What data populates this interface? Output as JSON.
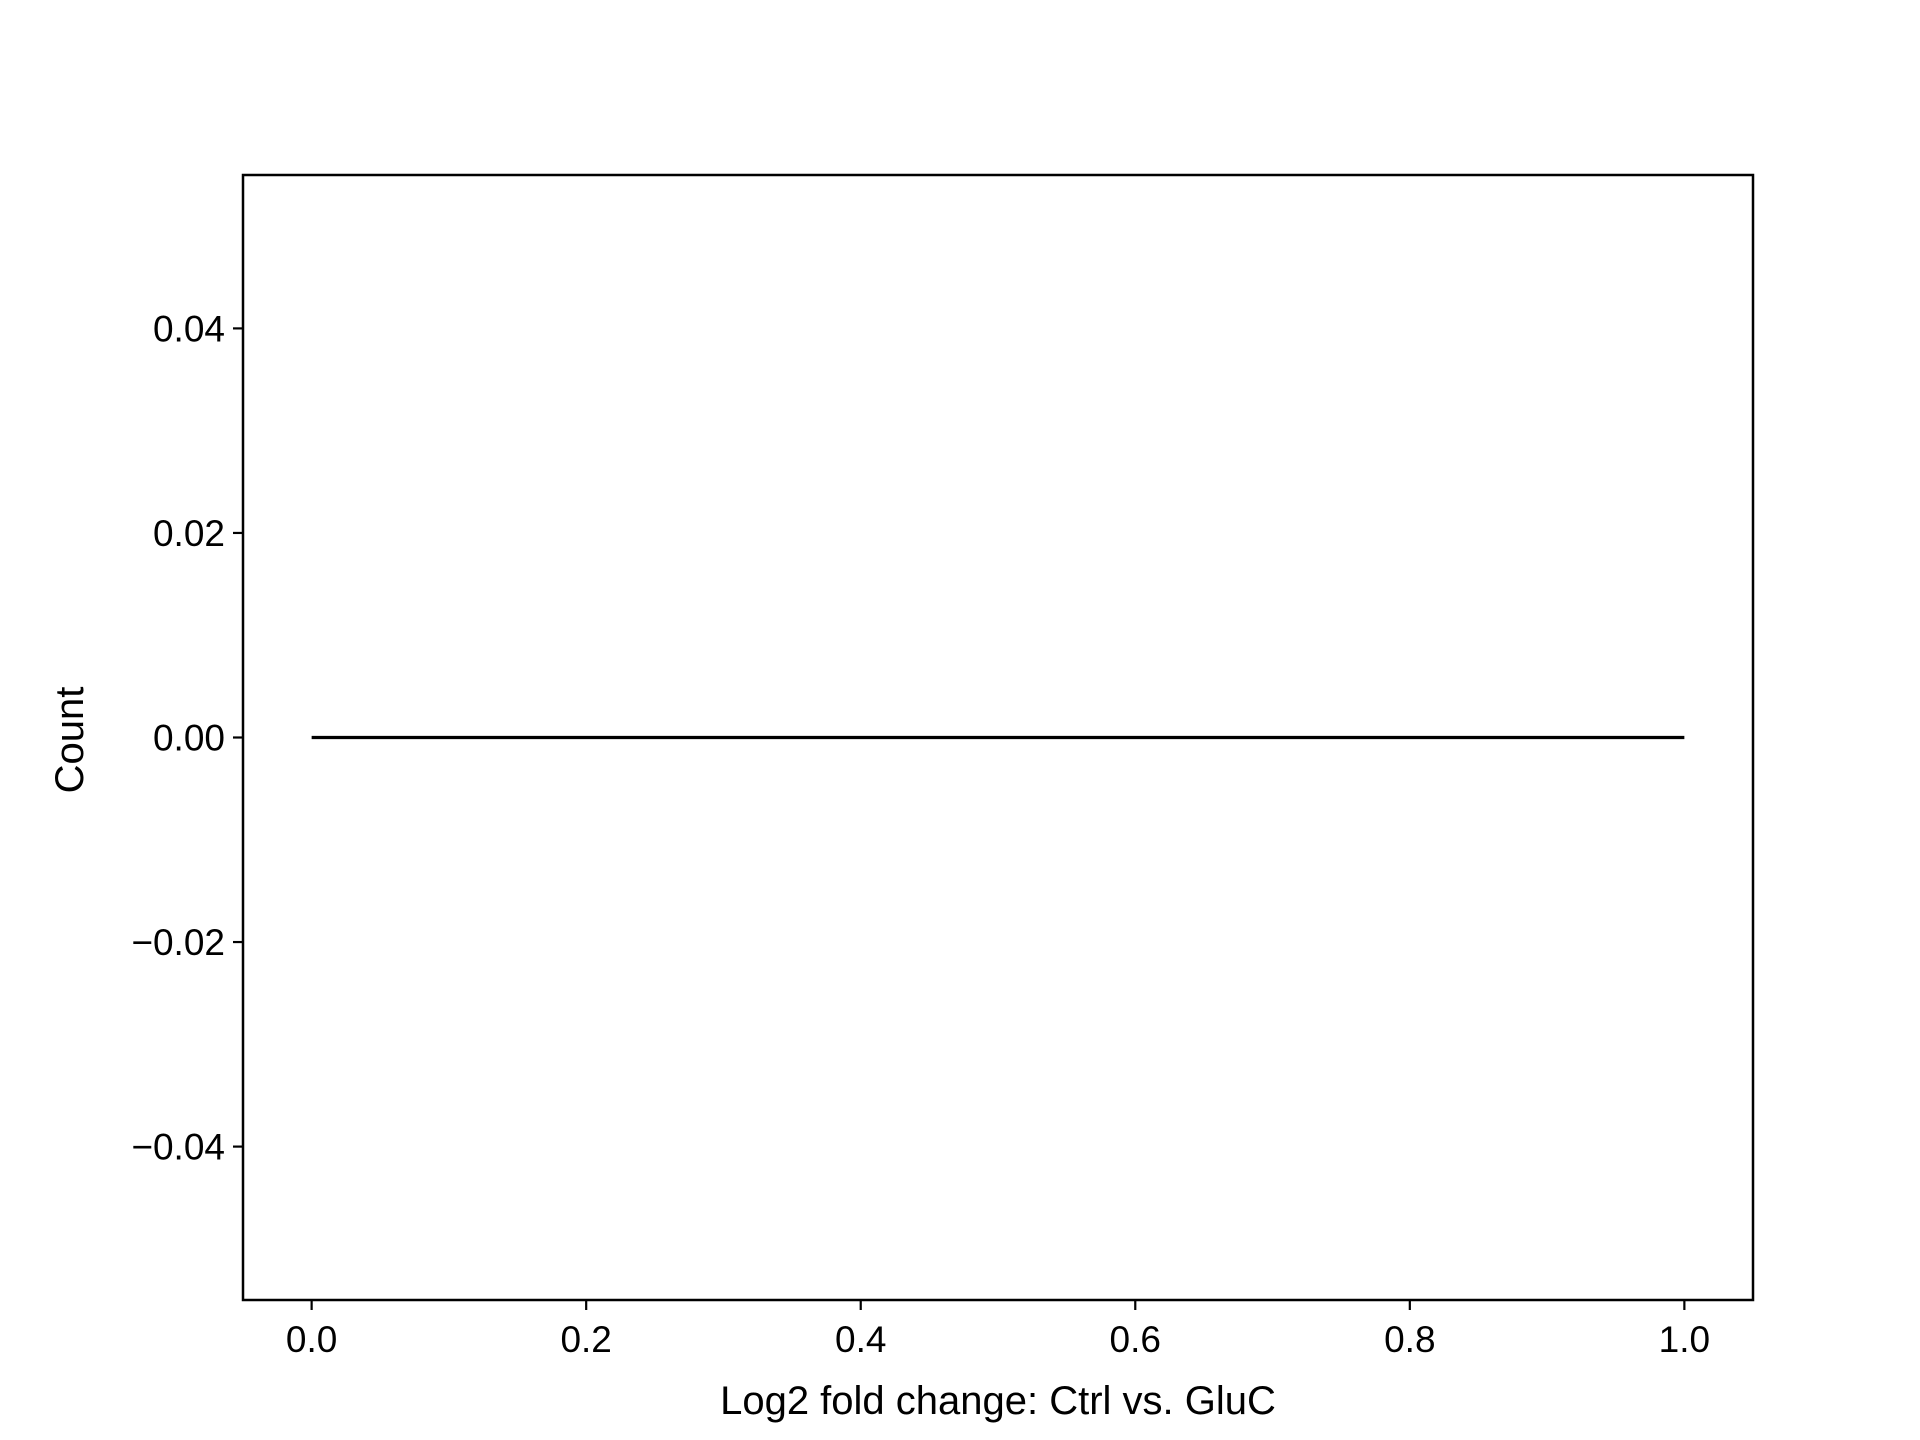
{
  "chart_data": {
    "type": "line",
    "title": "",
    "xlabel": "Log2 fold change: Ctrl vs. GluC",
    "ylabel": "Count",
    "xlim": [
      -0.05,
      1.05
    ],
    "ylim": [
      -0.055,
      0.055
    ],
    "x_ticks": [
      0.0,
      0.2,
      0.4,
      0.6,
      0.8,
      1.0
    ],
    "x_tick_labels": [
      "0.0",
      "0.2",
      "0.4",
      "0.6",
      "0.8",
      "1.0"
    ],
    "y_ticks": [
      -0.04,
      -0.02,
      0.0,
      0.02,
      0.04
    ],
    "y_tick_labels": [
      "−0.04",
      "−0.02",
      "0.00",
      "0.02",
      "0.04"
    ],
    "grid": false,
    "legend": "none",
    "series": [
      {
        "x": [
          0.0,
          1.0
        ],
        "y": [
          0.0,
          0.0
        ],
        "color": "#000000"
      }
    ]
  }
}
